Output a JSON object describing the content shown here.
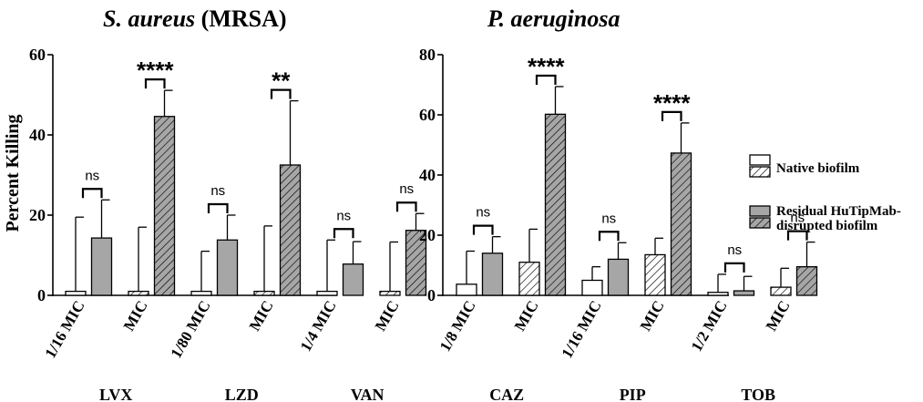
{
  "colors": {
    "black": "#000000",
    "white": "#ffffff",
    "gray": "#a6a6a6"
  },
  "legend": {
    "entries": [
      {
        "label": "Native biofilm",
        "fill": "white",
        "hatch": false
      },
      {
        "label": "",
        "fill": "white",
        "hatch": true
      },
      {
        "label": "Residual HuTipMab-",
        "fill": "gray",
        "hatch": false
      },
      {
        "label": "disrupted biofilm",
        "fill": "gray",
        "hatch": true
      }
    ]
  },
  "chart_data": [
    {
      "type": "bar",
      "title": "S. aureus (MRSA)",
      "title_italic": "S. aureus",
      "title_rest": " (MRSA)",
      "ylabel": "Percent Killing",
      "ylim": [
        0,
        60
      ],
      "yticks": [
        0,
        20,
        40,
        60
      ],
      "series": [
        {
          "name": "Native biofilm",
          "fill": "white"
        },
        {
          "name": "Residual HuTipMab-disrupted biofilm",
          "fill": "gray"
        }
      ],
      "pairs": [
        {
          "category": "1/16 MIC",
          "hatch": false,
          "native": 1,
          "native_err": 18.5,
          "disrupted": 14.3,
          "disrupted_err": 9.5,
          "sig": "ns"
        },
        {
          "category": "MIC",
          "hatch": true,
          "native": 1,
          "native_err": 16,
          "disrupted": 44.6,
          "disrupted_err": 6.5,
          "sig": "****"
        },
        {
          "category": "1/80 MIC",
          "hatch": false,
          "native": 1,
          "native_err": 10,
          "disrupted": 13.8,
          "disrupted_err": 6.2,
          "sig": "ns"
        },
        {
          "category": "MIC",
          "hatch": true,
          "native": 1,
          "native_err": 16.3,
          "disrupted": 32.5,
          "disrupted_err": 16,
          "sig": "**"
        },
        {
          "category": "1/4 MIC",
          "hatch": false,
          "native": 1,
          "native_err": 12.8,
          "disrupted": 7.8,
          "disrupted_err": 5.6,
          "sig": "ns"
        },
        {
          "category": "MIC",
          "hatch": true,
          "native": 1,
          "native_err": 12.3,
          "disrupted": 16.2,
          "disrupted_err": 4.2,
          "sig": "ns"
        }
      ],
      "groups": [
        "LVX",
        "LZD",
        "VAN"
      ]
    },
    {
      "type": "bar",
      "title": "P. aeruginosa",
      "title_italic": "P. aeruginosa",
      "title_rest": "",
      "ylabel": "",
      "ylim": [
        0,
        80
      ],
      "yticks": [
        0,
        20,
        40,
        60,
        80
      ],
      "series": [
        {
          "name": "Native biofilm",
          "fill": "white"
        },
        {
          "name": "Residual HuTipMab-disrupted biofilm",
          "fill": "gray"
        }
      ],
      "pairs": [
        {
          "category": "1/8 MIC",
          "hatch": false,
          "native": 3.7,
          "native_err": 11,
          "disrupted": 14,
          "disrupted_err": 5.5,
          "sig": "ns"
        },
        {
          "category": "MIC",
          "hatch": true,
          "native": 11,
          "native_err": 11,
          "disrupted": 60.2,
          "disrupted_err": 9.2,
          "sig": "****"
        },
        {
          "category": "1/16 MIC",
          "hatch": false,
          "native": 5,
          "native_err": 4.5,
          "disrupted": 12,
          "disrupted_err": 5.5,
          "sig": "ns"
        },
        {
          "category": "MIC",
          "hatch": true,
          "native": 13.5,
          "native_err": 5.5,
          "disrupted": 47.3,
          "disrupted_err": 10,
          "sig": "****"
        },
        {
          "category": "1/2 MIC",
          "hatch": false,
          "native": 1,
          "native_err": 6,
          "disrupted": 1.5,
          "disrupted_err": 4.8,
          "sig": "ns"
        },
        {
          "category": "MIC",
          "hatch": true,
          "native": 2.7,
          "native_err": 6.3,
          "disrupted": 9.5,
          "disrupted_err": 8.2,
          "sig": "ns"
        }
      ],
      "groups": [
        "CAZ",
        "PIP",
        "TOB"
      ]
    }
  ]
}
